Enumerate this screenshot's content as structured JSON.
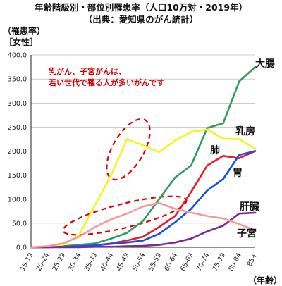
{
  "chart_data": {
    "type": "line",
    "title_lines": [
      "年齢階級別・部位別罹患率（人口10万対・2019年）",
      "（出典：愛知県のがん統計）"
    ],
    "ylabel_lines": [
      "（罹患率）",
      "［女性］"
    ],
    "xlabel": "（年齢）",
    "ylim": [
      0,
      400
    ],
    "yticks": [
      0,
      50,
      100,
      150,
      200,
      250,
      300,
      350,
      400
    ],
    "ytick_labels": [
      "0.0",
      "50.0",
      "100.0",
      "150.0",
      "200.0",
      "250.0",
      "300.0",
      "350.0",
      "400.0"
    ],
    "grid": true,
    "categories": [
      "15-19",
      "20-24",
      "25-29",
      "30-34",
      "35-39",
      "40-44",
      "45-49",
      "50-54",
      "55-59",
      "60-64",
      "65-69",
      "70-74",
      "75-79",
      "80-84",
      "85+"
    ],
    "series": [
      {
        "name": "大腸",
        "color": "#2e9e5b",
        "values": [
          0,
          1,
          2,
          5,
          8,
          18,
          30,
          55,
          100,
          145,
          170,
          248,
          258,
          345,
          375
        ]
      },
      {
        "name": "乳房",
        "color": "#f5f51c",
        "values": [
          0,
          2,
          5,
          25,
          88,
          150,
          225,
          212,
          198,
          222,
          240,
          245,
          226,
          225,
          205
        ]
      },
      {
        "name": "肺",
        "color": "#ee1b24",
        "values": [
          0,
          0,
          1,
          2,
          4,
          8,
          14,
          22,
          42,
          65,
          115,
          170,
          190,
          185,
          200
        ]
      },
      {
        "name": "胃",
        "color": "#1450e6",
        "values": [
          0,
          0,
          1,
          2,
          4,
          7,
          10,
          14,
          28,
          52,
          80,
          118,
          142,
          192,
          200
        ]
      },
      {
        "name": "肝臓",
        "color": "#7b2a91",
        "values": [
          0,
          0,
          0,
          0,
          1,
          1,
          2,
          3,
          5,
          10,
          18,
          33,
          45,
          70,
          72
        ]
      },
      {
        "name": "子宮",
        "color": "#f49a9a",
        "values": [
          0,
          2,
          8,
          22,
          42,
          58,
          70,
          85,
          92,
          80,
          72,
          65,
          60,
          48,
          35
        ]
      }
    ],
    "annotation_lines": [
      "乳がん、子宮がんは、",
      "若い世代で罹る人が多いがんです"
    ]
  }
}
